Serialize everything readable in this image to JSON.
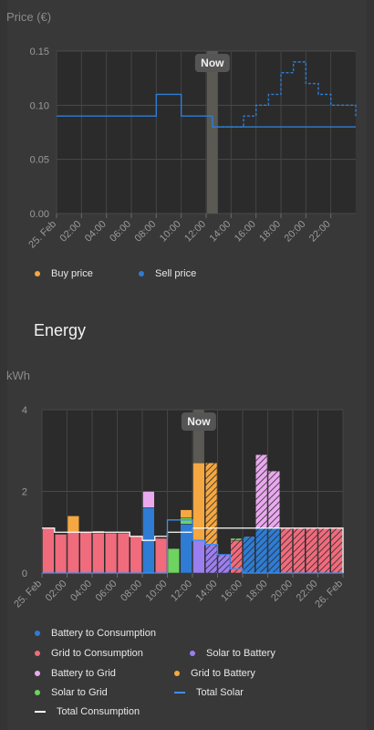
{
  "price_panel": {
    "now_label": "Now",
    "legend": [
      {
        "label": "Buy price",
        "color": "#f5a742"
      },
      {
        "label": "Sell price",
        "color": "#2f7cd4"
      }
    ]
  },
  "energy_panel": {
    "section_title": "Energy",
    "now_label": "Now",
    "legend": [
      {
        "label": "Battery to Consumption",
        "kind": "dot",
        "color": "#2f7cd4"
      },
      {
        "label": "Grid to Consumption",
        "kind": "dot",
        "color": "#f06b7c"
      },
      {
        "label": "Solar to Battery",
        "kind": "dot",
        "color": "#9b7ef0"
      },
      {
        "label": "Battery to Grid",
        "kind": "dot",
        "color": "#e9a9ee"
      },
      {
        "label": "Grid to Battery",
        "kind": "dot",
        "color": "#f5a742"
      },
      {
        "label": "Total Solar",
        "kind": "line",
        "color": "#3f8ef0"
      },
      {
        "label": "Solar to Grid",
        "kind": "dot",
        "color": "#6fd35f"
      },
      {
        "label": "Total Consumption",
        "kind": "line",
        "color": "#ffffff"
      }
    ]
  },
  "chart_data": [
    {
      "type": "line",
      "title": "Price (€)",
      "ylabel": "Price (€)",
      "ylim": [
        0,
        0.15
      ],
      "yticks": [
        "0.00",
        "0.05",
        "0.10",
        "0.15"
      ],
      "xticks": [
        "25. Feb",
        "02:00",
        "04:00",
        "06:00",
        "08:00",
        "10:00",
        "12:00",
        "14:00",
        "16:00",
        "18:00",
        "20:00",
        "22:00"
      ],
      "now_hour": 12.5,
      "series": [
        {
          "name": "Sell price",
          "style": "solid",
          "x": [
            0,
            8,
            10,
            12.5
          ],
          "values": [
            0.09,
            0.11,
            0.09,
            0.08
          ]
        },
        {
          "name": "Sell price",
          "style": "dashed",
          "x": [
            12.5,
            15,
            16,
            17,
            18,
            19,
            20,
            21,
            22,
            23,
            24
          ],
          "values": [
            0.08,
            0.09,
            0.1,
            0.11,
            0.13,
            0.14,
            0.12,
            0.11,
            0.1,
            0.1,
            0.09
          ]
        }
      ],
      "grid": true
    },
    {
      "type": "bar",
      "ylabel": "kWh",
      "ylim": [
        0,
        4
      ],
      "yticks": [
        "0",
        "2",
        "4"
      ],
      "xticks": [
        "25. Feb",
        "02:00",
        "04:00",
        "06:00",
        "08:00",
        "10:00",
        "12:00",
        "14:00",
        "16:00",
        "18:00",
        "20:00",
        "22:00",
        "26. Feb"
      ],
      "now_hour": 12.5,
      "hours": [
        0,
        1,
        2,
        3,
        4,
        5,
        6,
        7,
        8,
        9,
        10,
        11,
        12,
        13,
        14,
        15,
        16,
        17,
        18,
        19,
        20,
        21,
        22,
        23
      ],
      "series": [
        {
          "name": "Grid to Consumption",
          "color": "#f06b7c",
          "values": [
            1.1,
            0.95,
            1.0,
            1.0,
            0.98,
            0.98,
            0.98,
            0.9,
            0,
            0.85,
            0,
            0,
            0,
            0,
            0,
            0.8,
            0,
            0,
            0,
            1.1,
            1.1,
            1.1,
            1.1,
            1.1
          ]
        },
        {
          "name": "Battery to Consumption",
          "color": "#2f7cd4",
          "values": [
            0,
            0,
            0,
            0,
            0,
            0,
            0,
            0,
            1.6,
            0,
            0,
            1.2,
            0,
            0,
            0,
            0,
            0.9,
            1.1,
            1.1,
            0,
            0,
            0,
            0,
            0
          ]
        },
        {
          "name": "Solar to Grid",
          "color": "#6fd35f",
          "values": [
            0,
            0,
            0,
            0,
            0,
            0,
            0,
            0,
            0,
            0,
            0.6,
            0.15,
            0,
            0,
            0,
            0.05,
            0,
            0,
            0,
            0,
            0,
            0,
            0,
            0
          ]
        },
        {
          "name": "Solar to Battery",
          "color": "#9b7ef0",
          "values": [
            0,
            0,
            0,
            0,
            0,
            0,
            0,
            0,
            0,
            0,
            0,
            0,
            0.8,
            0.7,
            0.45,
            0,
            0,
            0,
            0,
            0,
            0,
            0,
            0,
            0
          ]
        },
        {
          "name": "Battery to Grid",
          "color": "#e9a9ee",
          "values": [
            0,
            0,
            0,
            0,
            0,
            0,
            0,
            0,
            0.4,
            0,
            0,
            0,
            0,
            0,
            0,
            0,
            0,
            1.8,
            1.4,
            0,
            0,
            0,
            0,
            0
          ]
        },
        {
          "name": "Grid to Battery",
          "color": "#f5a742",
          "values": [
            0,
            0,
            0.4,
            0,
            0.05,
            0,
            0,
            0,
            0,
            0,
            0,
            0.2,
            1.9,
            2.0,
            0,
            0,
            0,
            0,
            0,
            0,
            0,
            0,
            0,
            0
          ]
        }
      ],
      "lines": [
        {
          "name": "Total Consumption",
          "color": "#ffffff",
          "values": [
            1.1,
            1.0,
            1.0,
            1.0,
            1.0,
            1.0,
            1.0,
            0.9,
            0.8,
            0.9,
            1.0,
            1.0,
            1.1,
            1.1,
            1.1,
            1.1,
            1.1,
            1.1,
            1.1,
            1.1,
            1.1,
            1.1,
            1.1,
            1.1
          ]
        },
        {
          "name": "Total Solar",
          "color": "#3f8ef0",
          "values": [
            0,
            0,
            0,
            0,
            0,
            0,
            0,
            0,
            0,
            0,
            1.3,
            1.3,
            0.8,
            0.7,
            0.45,
            0.1,
            0,
            0,
            0,
            0,
            0,
            0,
            0,
            0
          ]
        }
      ],
      "grid": true
    }
  ]
}
